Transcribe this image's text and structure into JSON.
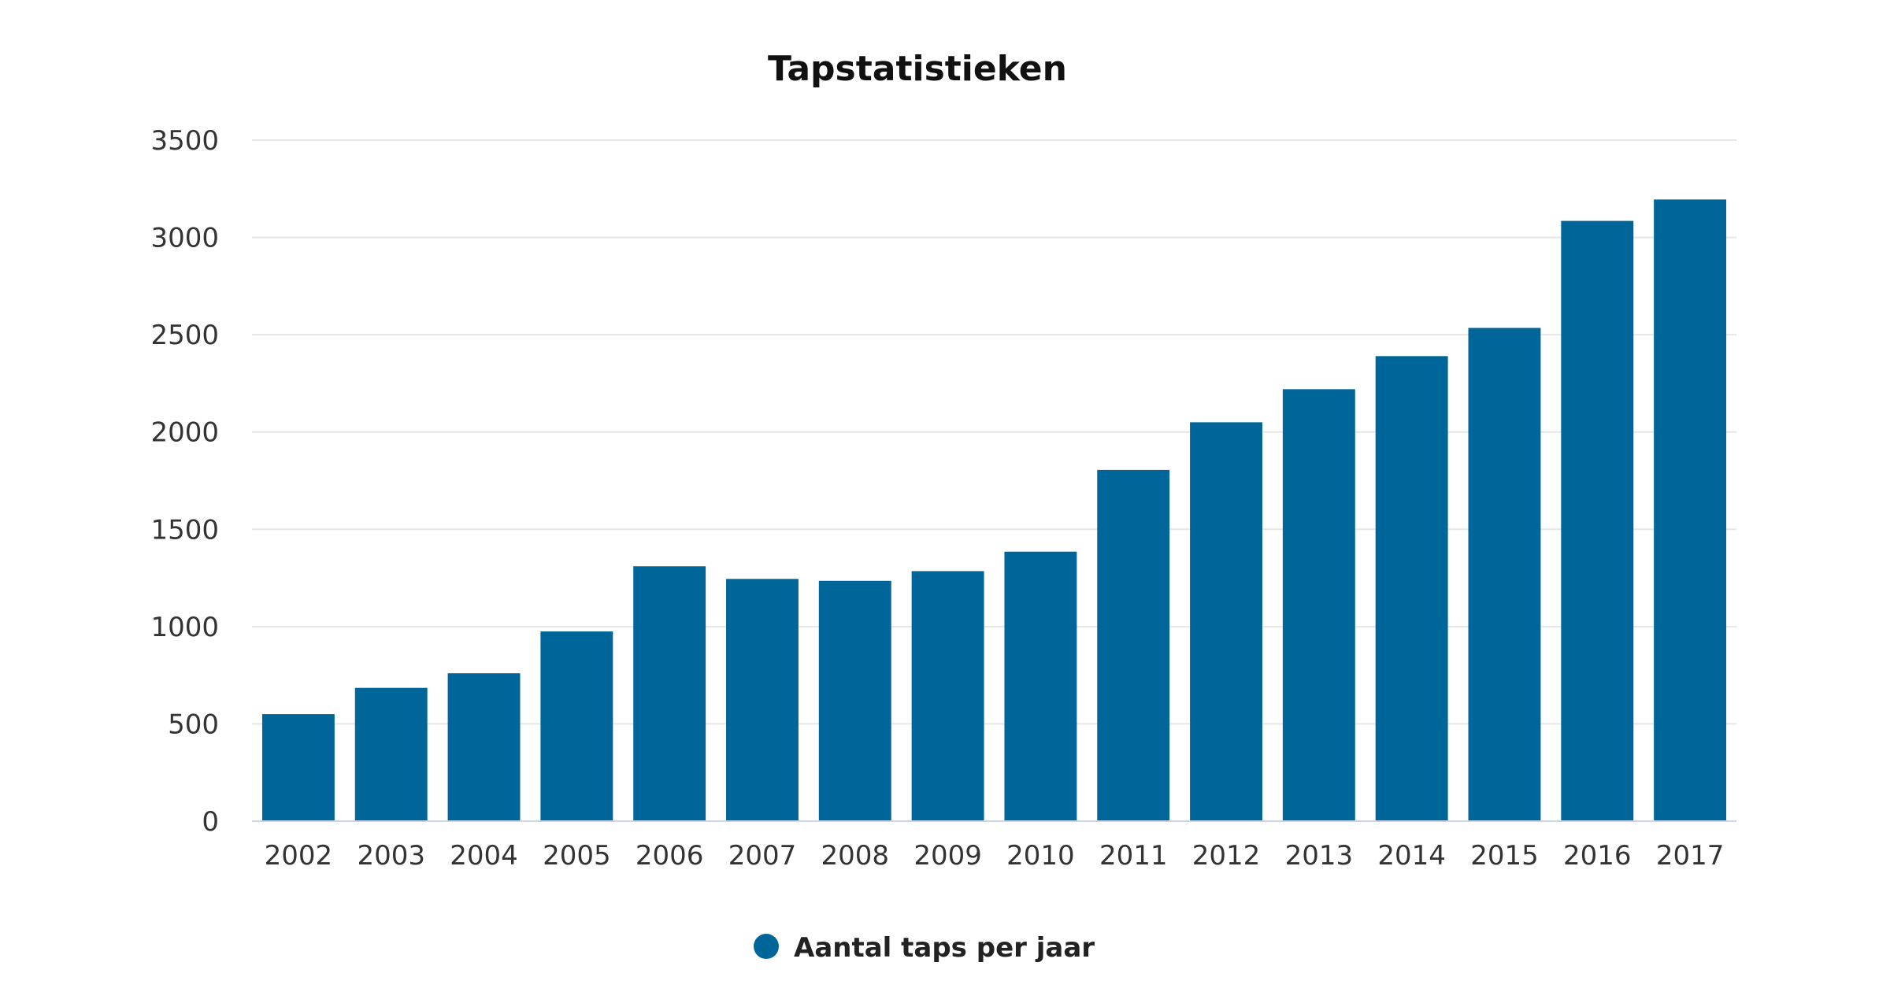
{
  "chart_data": {
    "type": "bar",
    "title": "Tapstatistieken",
    "categories": [
      "2002",
      "2003",
      "2004",
      "2005",
      "2006",
      "2007",
      "2008",
      "2009",
      "2010",
      "2011",
      "2012",
      "2013",
      "2014",
      "2015",
      "2016",
      "2017"
    ],
    "series": [
      {
        "name": "Aantal taps per jaar",
        "color": "#006699",
        "values": [
          550,
          685,
          760,
          975,
          1310,
          1245,
          1235,
          1285,
          1385,
          1805,
          2050,
          2220,
          2390,
          2535,
          3085,
          3195
        ]
      }
    ],
    "y_ticks": [
      "0",
      "500",
      "1000",
      "1500",
      "2000",
      "2500",
      "3000",
      "3500"
    ],
    "ylim": [
      0,
      3500
    ],
    "grid": true,
    "legend_position": "bottom-center"
  }
}
